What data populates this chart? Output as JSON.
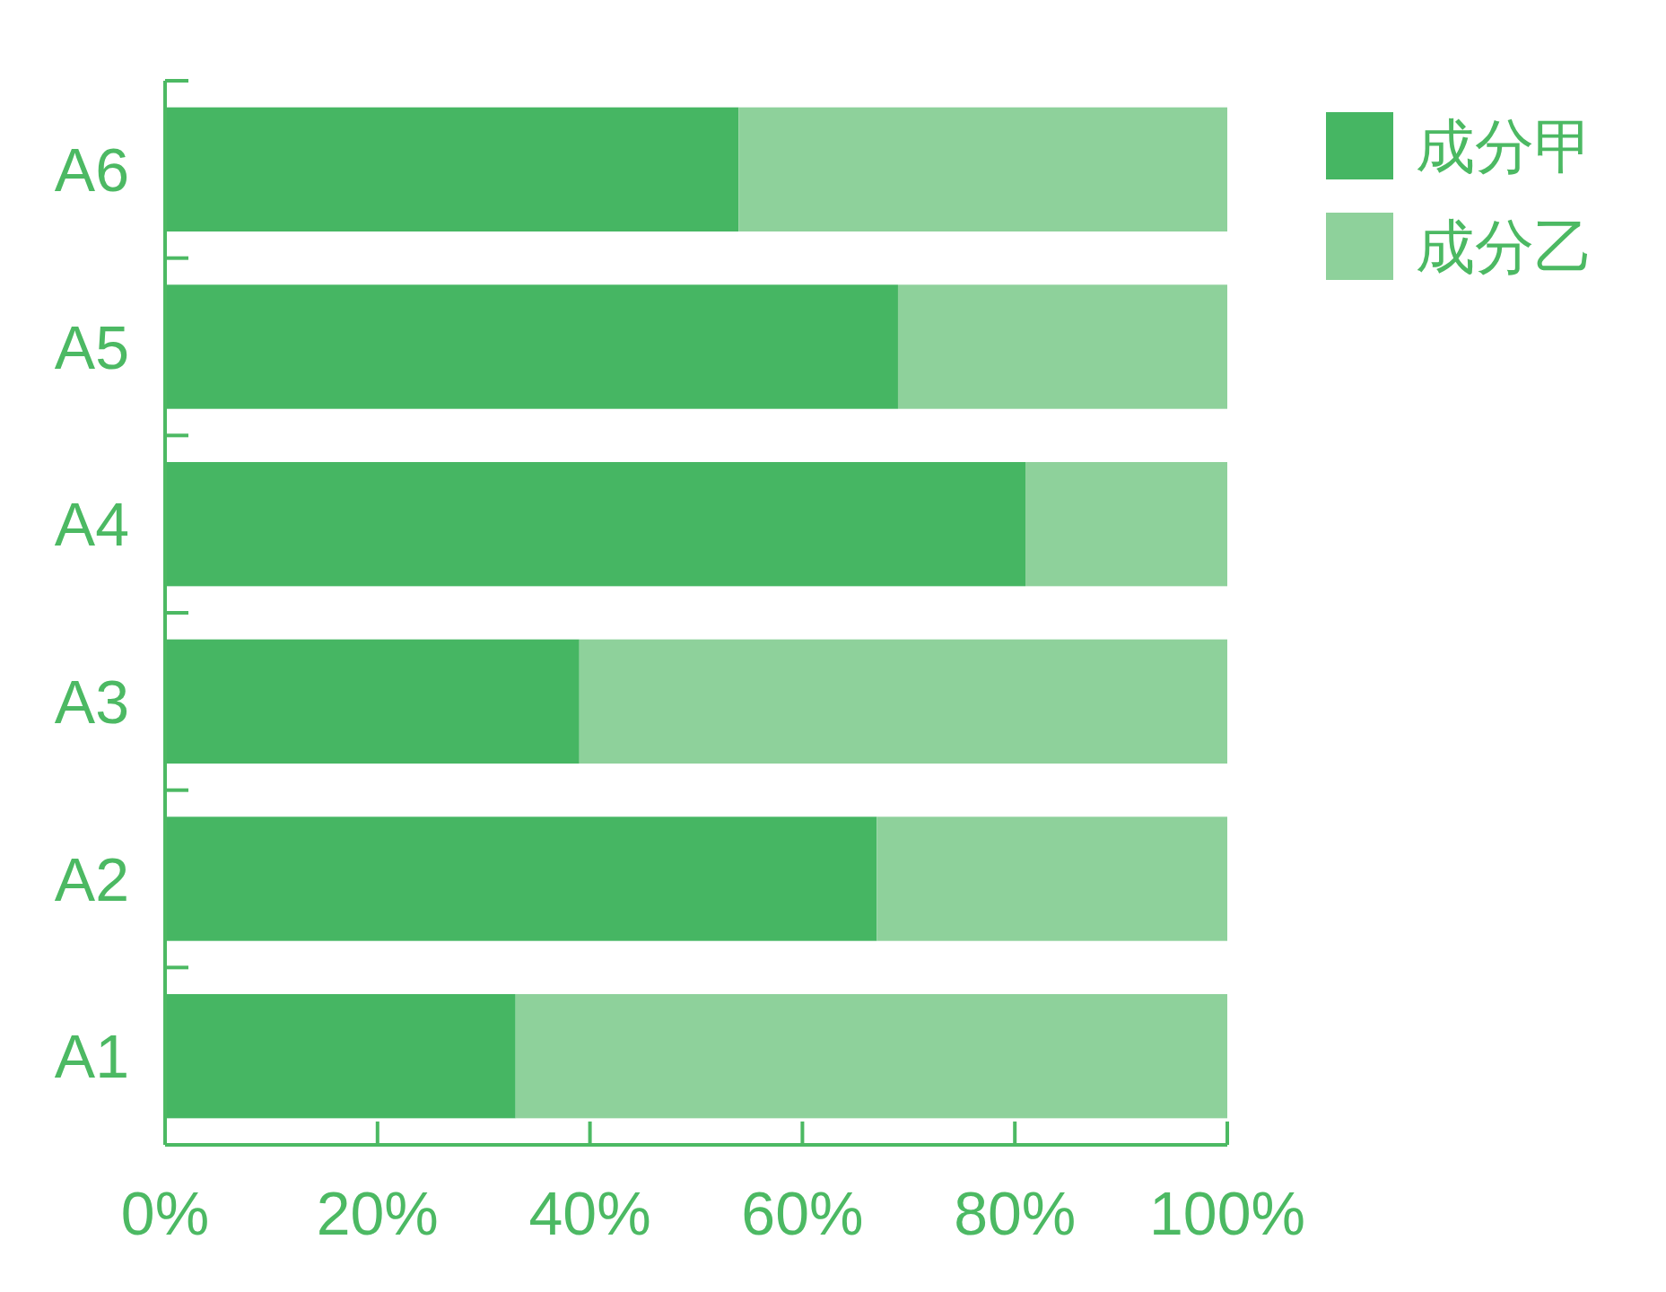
{
  "chart_data": {
    "type": "bar",
    "orientation": "horizontal",
    "stacked": true,
    "categories": [
      "A6",
      "A5",
      "A4",
      "A3",
      "A2",
      "A1"
    ],
    "series": [
      {
        "name": "成分甲",
        "color": "#46b663",
        "values": [
          54,
          69,
          81,
          39,
          67,
          33
        ]
      },
      {
        "name": "成分乙",
        "color": "#8ed19b",
        "values": [
          46,
          31,
          19,
          61,
          33,
          67
        ]
      }
    ],
    "xlim": [
      0,
      100
    ],
    "xticks": [
      {
        "value": 0,
        "label": "0%"
      },
      {
        "value": 20,
        "label": "20%"
      },
      {
        "value": 40,
        "label": "40%"
      },
      {
        "value": 60,
        "label": "60%"
      },
      {
        "value": 80,
        "label": "80%"
      },
      {
        "value": 100,
        "label": "100%"
      }
    ],
    "legend": "top right",
    "grid": false
  }
}
